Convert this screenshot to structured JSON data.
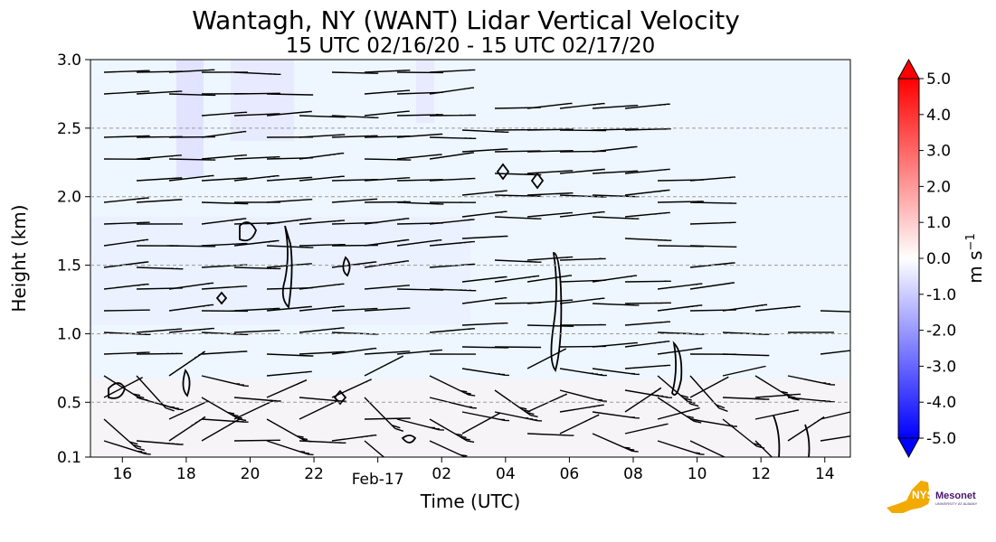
{
  "chart_data": {
    "type": "heatmap",
    "title": "Wantagh, NY (WANT) Lidar Vertical Velocity",
    "subtitle": "15 UTC 02/16/20 - 15 UTC 02/17/20",
    "xlabel": "Time (UTC)",
    "ylabel": "Height (km)",
    "x_ticks": [
      "16",
      "18",
      "20",
      "22",
      "Feb-17",
      "02",
      "04",
      "06",
      "08",
      "10",
      "12",
      "14"
    ],
    "x_tick_hours": [
      1,
      3,
      5,
      7,
      9,
      11,
      13,
      15,
      17,
      19,
      21,
      23
    ],
    "xlim_hours": [
      0,
      23.8
    ],
    "y_ticks": [
      "0.1",
      "0.5",
      "1.0",
      "1.5",
      "2.0",
      "2.5",
      "3.0"
    ],
    "y_tick_values": [
      0.1,
      0.5,
      1.0,
      1.5,
      2.0,
      2.5,
      3.0
    ],
    "ylim": [
      0.1,
      3.0
    ],
    "grid": "horizontal dashed",
    "colorbar": {
      "label": "m s",
      "label_exponent": "−1",
      "range": [
        -5.0,
        5.0
      ],
      "ticks": [
        "5.0",
        "4.0",
        "3.0",
        "2.0",
        "1.0",
        "0.0",
        "-1.0",
        "-2.0",
        "-3.0",
        "-4.0",
        "-5.0"
      ],
      "tick_values": [
        5,
        4,
        3,
        2,
        1,
        0,
        -1,
        -2,
        -3,
        -4,
        -5
      ],
      "colors_top_to_bottom": [
        "#ff0000",
        "#ffffff",
        "#0000ff"
      ]
    },
    "field_background_color": "#eef6ff",
    "overlays": [
      "wind barbs",
      "black contours"
    ]
  },
  "logo": {
    "text": "NYS Mesonet",
    "subtext": "UNIVERSITY AT ALBANY",
    "colors": {
      "state": "#f2a900",
      "text": "#46166b"
    }
  }
}
